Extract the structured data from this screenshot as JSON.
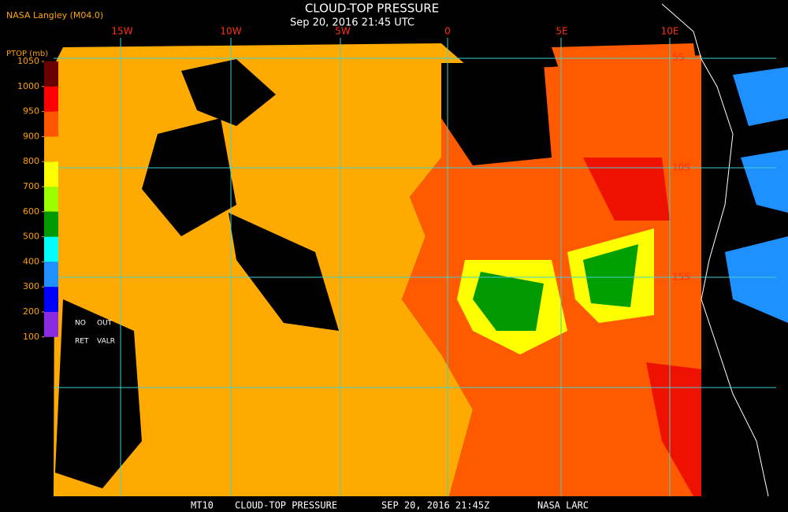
{
  "header": {
    "source": "NASA Langley (M04.0)",
    "title": "CLOUD-TOP PRESSURE",
    "datetime": "Sep 20, 2016 21:45 UTC"
  },
  "colorbar": {
    "label": "PTOP (mb)",
    "ticks": [
      1050,
      1000,
      950,
      900,
      800,
      700,
      600,
      500,
      400,
      300,
      200,
      100
    ],
    "colors": [
      "#6b0000",
      "#ff0000",
      "#ff5500",
      "#ffaa00",
      "#ffff00",
      "#9cff00",
      "#009a00",
      "#00ffff",
      "#1e90ff",
      "#0000ff",
      "#8a2be2"
    ],
    "notes": [
      "NO",
      "OUT",
      "RET",
      "VALR"
    ]
  },
  "longitude_labels": [
    "15W",
    "10W",
    "5W",
    "0",
    "5E",
    "10E"
  ],
  "latitude_labels": [
    "5S",
    "10S",
    "15S"
  ],
  "footer": [
    "MT10",
    "CLOUD-TOP PRESSURE",
    "SEP 20, 2016 21:45Z",
    "NASA LARC"
  ]
}
